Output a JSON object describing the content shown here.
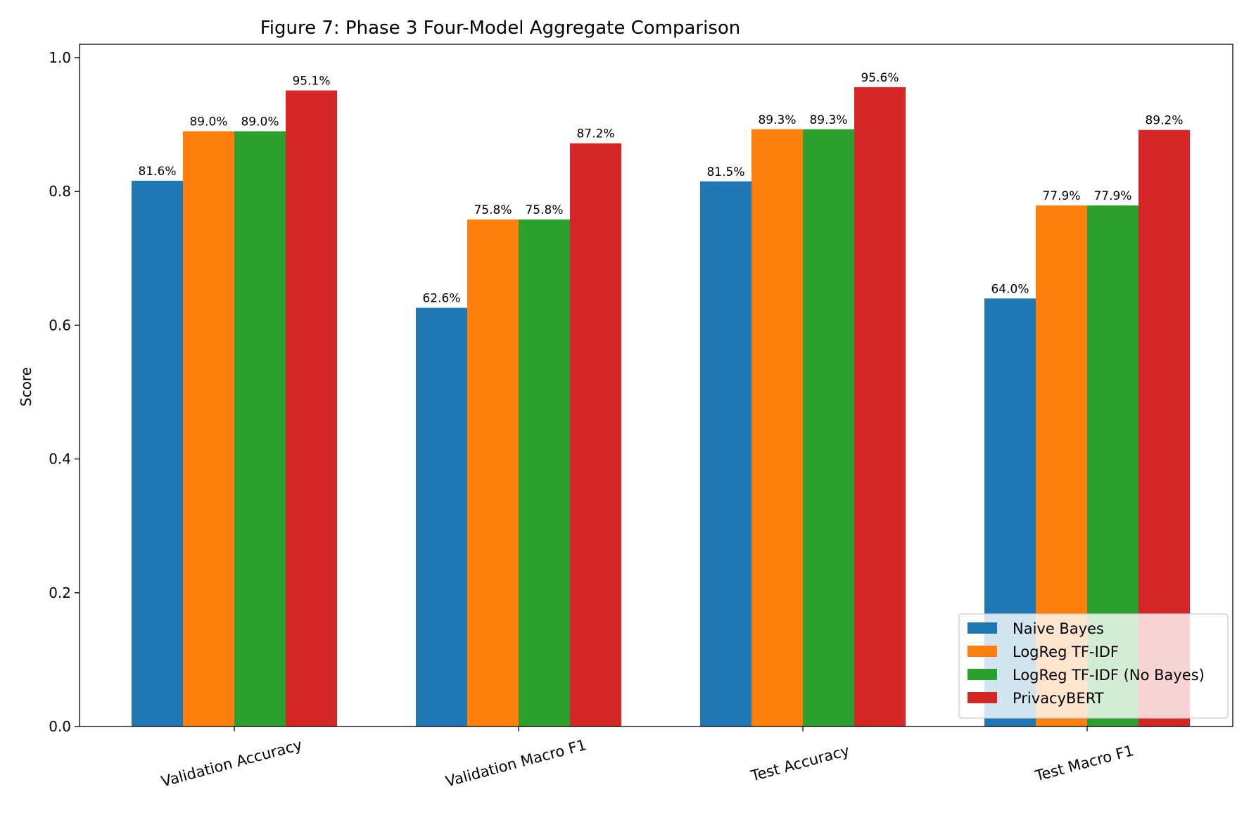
{
  "chart_data": {
    "type": "bar",
    "title": "Figure 7: Phase 3 Four-Model Aggregate Comparison",
    "xlabel": "",
    "ylabel": "Score",
    "ylim": [
      0,
      1.02
    ],
    "yticks": [
      "0.0",
      "0.2",
      "0.4",
      "0.6",
      "0.8",
      "1.0"
    ],
    "ytick_values": [
      0.0,
      0.2,
      0.4,
      0.6,
      0.8,
      1.0
    ],
    "categories": [
      "Validation Accuracy",
      "Validation Macro F1",
      "Test Accuracy",
      "Test Macro F1"
    ],
    "series": [
      {
        "name": "Naive Bayes",
        "color": "#1f77b4",
        "values": [
          0.816,
          0.626,
          0.815,
          0.64
        ],
        "labels": [
          "81.6%",
          "62.6%",
          "81.5%",
          "64.0%"
        ]
      },
      {
        "name": "LogReg TF-IDF",
        "color": "#ff7f0e",
        "values": [
          0.89,
          0.758,
          0.893,
          0.779
        ],
        "labels": [
          "89.0%",
          "75.8%",
          "89.3%",
          "77.9%"
        ]
      },
      {
        "name": "LogReg TF-IDF (No Bayes)",
        "color": "#2ca02c",
        "values": [
          0.89,
          0.758,
          0.893,
          0.779
        ],
        "labels": [
          "89.0%",
          "75.8%",
          "89.3%",
          "77.9%"
        ]
      },
      {
        "name": "PrivacyBERT",
        "color": "#d62728",
        "values": [
          0.951,
          0.872,
          0.956,
          0.892
        ],
        "labels": [
          "95.1%",
          "87.2%",
          "95.6%",
          "89.2%"
        ]
      }
    ],
    "legend_position": "lower-right",
    "grid": false
  }
}
